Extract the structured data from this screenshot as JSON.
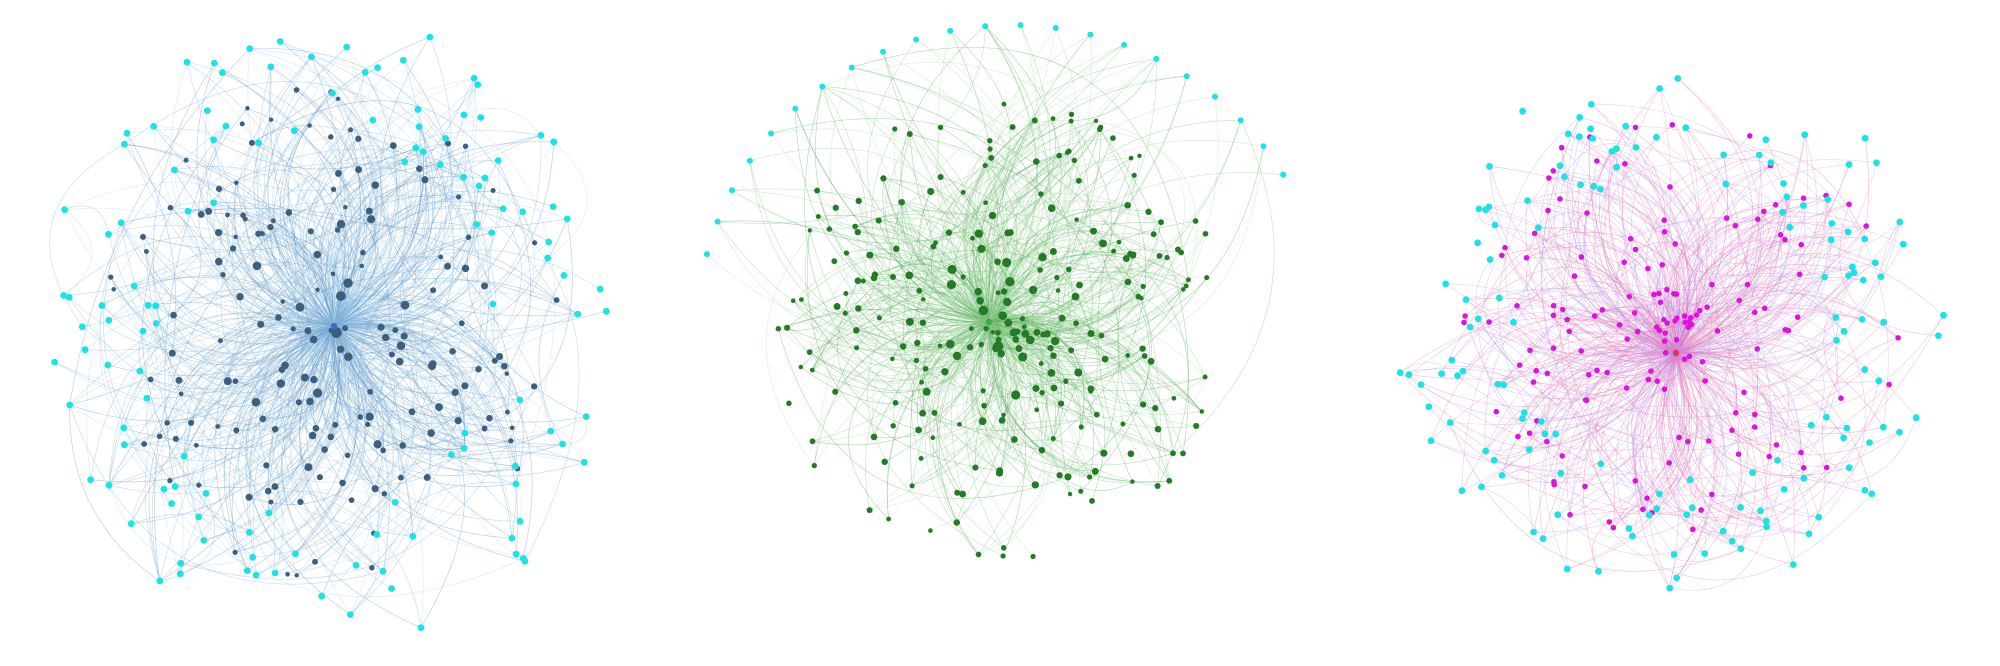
{
  "figure": {
    "panel_count": 3,
    "panels": [
      {
        "id": "blue",
        "hub_color": "#3b6fcf",
        "edge_colors": [
          "#7fb3d8",
          "#a8d4ec",
          "#5b8fc9"
        ],
        "node_colors": {
          "primary": "#3c5f80",
          "secondary": "#19e3e6"
        },
        "primary_node_count": 175,
        "secondary_node_count": 120,
        "edge_count": 900
      },
      {
        "id": "green",
        "hub_color": "#3da84a",
        "edge_colors": [
          "#7cc47d",
          "#a9dca5",
          "#4daa52"
        ],
        "node_colors": {
          "primary": "#237b25",
          "secondary": "#237b25"
        },
        "primary_node_count": 250,
        "secondary_node_count": 0,
        "fan_node_color": "#19e3e6",
        "fan_node_count": 22,
        "edge_count": 800
      },
      {
        "id": "pink",
        "hub_color": "#e0306a",
        "edge_colors": [
          "#e68ad4",
          "#b39cf0",
          "#f06fa8"
        ],
        "node_colors": {
          "primary": "#dd12dd",
          "secondary": "#19e3e6"
        },
        "primary_node_count": 150,
        "secondary_node_count": 140,
        "edge_count": 650
      }
    ]
  }
}
